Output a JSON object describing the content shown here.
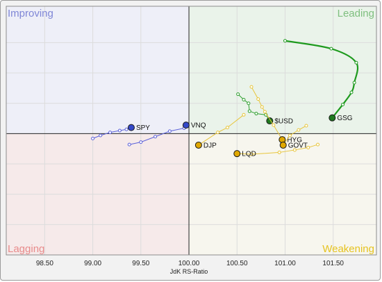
{
  "chart_data": {
    "type": "scatter",
    "xlabel": "JdK RS-Ratio",
    "ylabel": "",
    "xlim": [
      98.1,
      101.95
    ],
    "ylim": [
      98.0,
      102.1
    ],
    "center": [
      100,
      100
    ],
    "grid": true,
    "x_ticks": [
      "98.50",
      "99.00",
      "99.50",
      "100.00",
      "100.50",
      "101.00",
      "101.50"
    ],
    "x_tick_values": [
      98.5,
      99.0,
      99.5,
      100.0,
      100.5,
      101.0,
      101.5
    ],
    "y_tick_values": [
      98.5,
      99.0,
      99.5,
      100.5,
      101.0,
      101.5
    ],
    "quadrants": [
      {
        "name": "Improving",
        "color": "#7f86d6",
        "bg": "#eeeff8"
      },
      {
        "name": "Leading",
        "color": "#7fbf7f",
        "bg": "#eaf3ea"
      },
      {
        "name": "Lagging",
        "color": "#e88b8b",
        "bg": "#f6eaea"
      },
      {
        "name": "Weakening",
        "color": "#e6c320",
        "bg": "#f7f6ee"
      }
    ],
    "series": [
      {
        "name": "SPY",
        "color": "#5b61d9",
        "head_color": "#3448c9",
        "points": [
          [
            99.0,
            99.92
          ],
          [
            99.08,
            99.97
          ],
          [
            99.18,
            100.02
          ],
          [
            99.28,
            100.05
          ],
          [
            99.35,
            100.07
          ],
          [
            99.4,
            100.1
          ]
        ]
      },
      {
        "name": "VNQ",
        "color": "#5b61d9",
        "head_color": "#3448c9",
        "points": [
          [
            99.38,
            99.82
          ],
          [
            99.5,
            99.86
          ],
          [
            99.65,
            99.95
          ],
          [
            99.8,
            100.04
          ],
          [
            99.95,
            100.09
          ],
          [
            99.97,
            100.14
          ]
        ]
      },
      {
        "name": "DJP",
        "color": "#e8c53a",
        "head_color": "#e0a800",
        "points": [
          [
            100.57,
            100.31
          ],
          [
            100.4,
            100.1
          ],
          [
            100.3,
            100.02
          ],
          [
            100.1,
            99.81
          ]
        ]
      },
      {
        "name": "$USD",
        "color": "#2e9e2e",
        "head_color": "#1e7a1e",
        "points": [
          [
            100.51,
            100.65
          ],
          [
            100.57,
            100.56
          ],
          [
            100.62,
            100.5
          ],
          [
            100.63,
            100.37
          ],
          [
            100.7,
            100.33
          ],
          [
            100.8,
            100.31
          ],
          [
            100.84,
            100.21
          ]
        ]
      },
      {
        "name": "GSG",
        "color": "#1e9a1e",
        "head_color": "#1e7a1e",
        "points": [
          [
            101.0,
            101.53
          ],
          [
            101.48,
            101.4
          ],
          [
            101.74,
            101.17
          ],
          [
            101.72,
            100.84
          ],
          [
            101.69,
            100.68
          ],
          [
            101.6,
            100.48
          ],
          [
            101.49,
            100.26
          ]
        ]
      },
      {
        "name": "HYG",
        "color": "#e8c53a",
        "head_color": "#e0a800",
        "points": [
          [
            100.65,
            100.77
          ],
          [
            100.72,
            100.57
          ],
          [
            100.76,
            100.44
          ],
          [
            100.79,
            100.36
          ],
          [
            100.88,
            100.14
          ],
          [
            100.97,
            99.9
          ]
        ]
      },
      {
        "name": "GOVT",
        "color": "#e8c53a",
        "head_color": "#e0a800",
        "points": [
          [
            101.22,
            100.13
          ],
          [
            101.14,
            100.06
          ],
          [
            101.05,
            99.97
          ],
          [
            100.98,
            99.81
          ]
        ]
      },
      {
        "name": "LQD",
        "color": "#e8c53a",
        "head_color": "#e0a800",
        "points": [
          [
            101.34,
            99.82
          ],
          [
            101.24,
            99.77
          ],
          [
            101.1,
            99.73
          ],
          [
            100.94,
            99.69
          ],
          [
            100.65,
            99.66
          ],
          [
            100.5,
            99.67
          ]
        ]
      }
    ]
  }
}
